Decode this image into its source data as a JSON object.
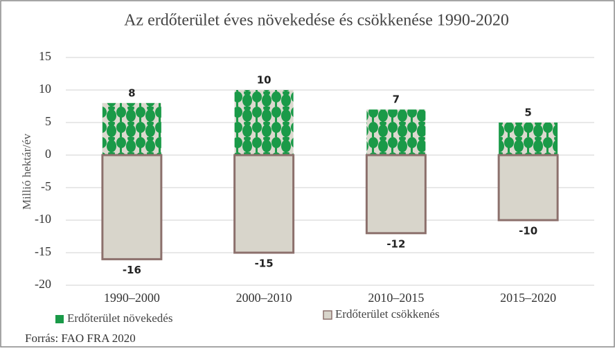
{
  "chart_data": {
    "type": "bar",
    "title": "Az erdőterület éves növekedése és csökkenése 1990-2020",
    "y_label": "Millió hektár/év",
    "categories": [
      "1990–2000",
      "2000–2010",
      "2010–2015",
      "2015–2020"
    ],
    "series": [
      {
        "name": "Erdőterület növekedés",
        "color": "#1a9a48",
        "values": [
          8,
          10,
          7,
          5
        ]
      },
      {
        "name": "Erdőterület csökkenés",
        "color": "#d8d5cb",
        "stroke": "#8c706c",
        "values": [
          -16,
          -15,
          -12,
          -10
        ]
      }
    ],
    "ylim": [
      -20,
      15
    ],
    "yticks": [
      -20,
      -15,
      -10,
      -5,
      0,
      5,
      10,
      15
    ],
    "grid": true,
    "source": "Forrás: FAO FRA 2020"
  }
}
